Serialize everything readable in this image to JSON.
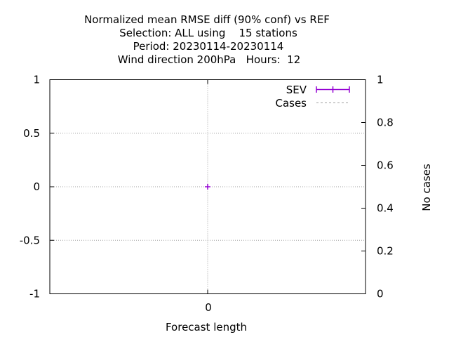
{
  "chart_data": {
    "type": "line",
    "title_lines": [
      "Normalized mean RMSE diff (90% conf) vs REF",
      "Selection: ALL using    15 stations",
      "Period: 20230114-20230114",
      "Wind direction 200hPa   Hours:  12"
    ],
    "xlabel": "Forecast length",
    "ylabel": "",
    "y2label": "No cases",
    "x_ticks": [
      "0"
    ],
    "y_ticks": [
      "1",
      "0.5",
      "0",
      "-0.5",
      "-1"
    ],
    "y2_ticks": [
      "1",
      "0.8",
      "0.6",
      "0.4",
      "0.2",
      "0"
    ],
    "ylim": [
      -1,
      1
    ],
    "y2lim": [
      0,
      1
    ],
    "grid": true,
    "legend_position": "top-right",
    "series": [
      {
        "name": "SEV",
        "style": "errorbars",
        "color": "#9400d3",
        "points": [
          {
            "x": 0,
            "y": 0,
            "ylow": 0,
            "yhigh": 0
          }
        ]
      },
      {
        "name": "Cases",
        "style": "dashed",
        "axis": "y2",
        "color": "#a0a0a0",
        "points": []
      }
    ]
  }
}
